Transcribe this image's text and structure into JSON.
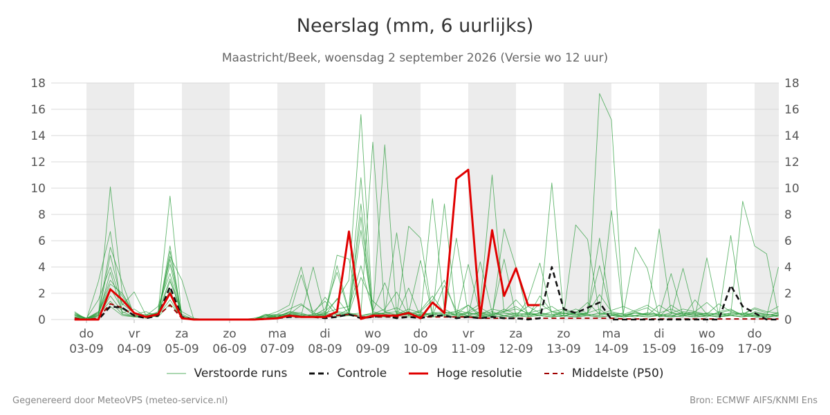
{
  "header": {
    "title": "Neerslag (mm, 6 uurlijks)",
    "subtitle": "Maastricht/Beek, woensdag  2 september 2026 (Versie wo 12 uur)"
  },
  "footer": {
    "left": "Gegenereerd door MeteoVPS (meteo-service.nl)",
    "right": "Bron: ECMWF AIFS/KNMI Ens"
  },
  "colors": {
    "ensemble": "#2e9e3e",
    "control": "#111111",
    "hires": "#e00000",
    "median": "#a00000",
    "weekend_band": "#ececec",
    "grid": "#d9d9d9"
  },
  "chart_data": {
    "type": "line",
    "xlabel": "",
    "ylabel": "",
    "x_unit": "days since 2026-09-02 12:00 (6-hourly steps)",
    "xlim": [
      0.0,
      15.0
    ],
    "ylim": [
      0,
      18
    ],
    "yticks": [
      0,
      2,
      4,
      6,
      8,
      10,
      12,
      14,
      16,
      18
    ],
    "axis_labels_right": true,
    "grid": true,
    "legend_position": "bottom",
    "x_ticks": [
      {
        "day": "do",
        "date": "03-09"
      },
      {
        "day": "vr",
        "date": "04-09"
      },
      {
        "day": "za",
        "date": "05-09"
      },
      {
        "day": "zo",
        "date": "06-09"
      },
      {
        "day": "ma",
        "date": "07-09"
      },
      {
        "day": "di",
        "date": "08-09"
      },
      {
        "day": "wo",
        "date": "09-09"
      },
      {
        "day": "do",
        "date": "10-09"
      },
      {
        "day": "vr",
        "date": "11-09"
      },
      {
        "day": "za",
        "date": "12-09"
      },
      {
        "day": "zo",
        "date": "13-09"
      },
      {
        "day": "ma",
        "date": "14-09"
      },
      {
        "day": "di",
        "date": "15-09"
      },
      {
        "day": "wo",
        "date": "16-09"
      },
      {
        "day": "do",
        "date": "17-09"
      }
    ],
    "shaded_days_start": [
      0,
      2,
      4,
      6,
      8,
      10,
      12,
      14
    ],
    "legend": [
      {
        "key": "ensemble",
        "label": "Verstoorde runs",
        "style": "thin-solid"
      },
      {
        "key": "control",
        "label": "Controle",
        "style": "dashed"
      },
      {
        "key": "hires",
        "label": "Hoge resolutie",
        "style": "thick-solid"
      },
      {
        "key": "median",
        "label": "Middelste (P50)",
        "style": "dashed"
      }
    ],
    "series": [
      {
        "name": "Hoge resolutie",
        "x": [
          -0.25,
          0.0,
          0.25,
          0.5,
          0.75,
          1.0,
          1.25,
          1.5,
          1.75,
          2.0,
          2.25,
          2.5,
          2.75,
          3.0,
          3.25,
          3.5,
          3.75,
          4.0,
          4.25,
          4.5,
          4.75,
          5.0,
          5.25,
          5.5,
          5.75,
          6.0,
          6.25,
          6.5,
          6.75,
          7.0,
          7.25,
          7.5,
          7.75,
          8.0,
          8.25,
          8.5,
          8.75,
          9.0,
          9.25,
          9.5
        ],
        "values": [
          0.0,
          0.0,
          0.0,
          2.3,
          1.5,
          0.5,
          0.2,
          0.4,
          2.0,
          0.1,
          0.0,
          0.0,
          0.0,
          0.0,
          0.0,
          0.0,
          0.05,
          0.1,
          0.3,
          0.2,
          0.2,
          0.2,
          0.6,
          6.7,
          0.05,
          0.3,
          0.3,
          0.3,
          0.5,
          0.1,
          1.3,
          0.5,
          10.7,
          11.4,
          0.2,
          6.8,
          1.8,
          3.9,
          1.1,
          1.1
        ]
      },
      {
        "name": "Controle",
        "x": [
          -0.25,
          0.0,
          0.25,
          0.5,
          0.75,
          1.0,
          1.25,
          1.5,
          1.75,
          2.0,
          2.25,
          2.5,
          2.75,
          3.0,
          3.25,
          3.5,
          3.75,
          4.0,
          4.25,
          4.5,
          4.75,
          5.0,
          5.25,
          5.5,
          5.75,
          6.0,
          6.25,
          6.5,
          6.75,
          7.0,
          7.25,
          7.5,
          7.75,
          8.0,
          8.25,
          8.5,
          8.75,
          9.0,
          9.25,
          9.5,
          9.75,
          10.0,
          10.25,
          10.5,
          10.75,
          11.0,
          11.25,
          11.5,
          11.75,
          12.0,
          12.25,
          12.5,
          12.75,
          13.0,
          13.25,
          13.5,
          13.75,
          14.0,
          14.25,
          14.5
        ],
        "values": [
          0.0,
          0.0,
          0.0,
          1.0,
          0.9,
          0.3,
          0.1,
          0.3,
          2.5,
          0.2,
          0.0,
          0.0,
          0.0,
          0.0,
          0.0,
          0.0,
          0.05,
          0.1,
          0.2,
          0.2,
          0.2,
          0.1,
          0.2,
          0.4,
          0.1,
          0.2,
          0.3,
          0.1,
          0.2,
          0.1,
          0.3,
          0.3,
          0.1,
          0.2,
          0.1,
          0.2,
          0.1,
          0.1,
          0.0,
          0.1,
          4.0,
          0.8,
          0.5,
          0.9,
          1.3,
          0.0,
          0.0,
          0.0,
          0.0,
          0.0,
          0.0,
          0.0,
          0.0,
          0.0,
          0.0,
          2.6,
          1.0,
          0.5,
          0.0,
          0.0
        ]
      },
      {
        "name": "Middelste (P50)",
        "x": [
          -0.25,
          0.0,
          0.25,
          0.5,
          0.75,
          1.0,
          1.25,
          1.5,
          1.75,
          2.0,
          2.25,
          2.5,
          2.75,
          3.0,
          3.25,
          3.5,
          3.75,
          4.0,
          4.25,
          4.5,
          4.75,
          5.0,
          5.25,
          5.5,
          5.75,
          6.0,
          6.25,
          6.5,
          6.75,
          7.0,
          7.25,
          7.5,
          7.75,
          8.0,
          8.25,
          8.5,
          8.75,
          9.0,
          9.25,
          9.5,
          9.75,
          10.0,
          10.25,
          10.5,
          10.75,
          11.0,
          11.25,
          11.5,
          11.75,
          12.0,
          12.25,
          12.5,
          12.75,
          13.0,
          13.25,
          13.5,
          13.75,
          14.0,
          14.25,
          14.5
        ],
        "values": [
          0.1,
          0.0,
          0.1,
          1.2,
          0.9,
          0.3,
          0.1,
          0.3,
          1.1,
          0.1,
          0.0,
          0.0,
          0.0,
          0.0,
          0.0,
          0.0,
          0.05,
          0.1,
          0.2,
          0.2,
          0.2,
          0.2,
          0.3,
          0.4,
          0.2,
          0.2,
          0.2,
          0.2,
          0.2,
          0.2,
          0.2,
          0.2,
          0.2,
          0.2,
          0.1,
          0.1,
          0.1,
          0.1,
          0.1,
          0.1,
          0.1,
          0.1,
          0.1,
          0.1,
          0.1,
          0.1,
          0.05,
          0.05,
          0.05,
          0.05,
          0.05,
          0.05,
          0.05,
          0.05,
          0.05,
          0.05,
          0.05,
          0.05,
          0.05,
          0.05
        ]
      }
    ],
    "ensemble": {
      "name": "Verstoorde runs",
      "x": [
        -0.25,
        0.0,
        0.25,
        0.5,
        0.75,
        1.0,
        1.25,
        1.5,
        1.75,
        2.0,
        2.25,
        2.5,
        2.75,
        3.0,
        3.25,
        3.5,
        3.75,
        4.0,
        4.25,
        4.5,
        4.75,
        5.0,
        5.25,
        5.5,
        5.75,
        6.0,
        6.25,
        6.5,
        6.75,
        7.0,
        7.25,
        7.5,
        7.75,
        8.0,
        8.25,
        8.5,
        8.75,
        9.0,
        9.25,
        9.5,
        9.75,
        10.0,
        10.25,
        10.5,
        10.75,
        11.0,
        11.25,
        11.5,
        11.75,
        12.0,
        12.25,
        12.5,
        12.75,
        13.0,
        13.25,
        13.5,
        13.75,
        14.0,
        14.25,
        14.5
      ],
      "members": [
        [
          0.5,
          0.1,
          0.3,
          10.1,
          2.0,
          0.5,
          0.2,
          0.5,
          9.4,
          0.1,
          0.0,
          0.0,
          0.0,
          0.0,
          0.0,
          0.1,
          0.3,
          0.4,
          0.8,
          1.2,
          0.4,
          0.6,
          1.5,
          3.0,
          15.6,
          0.4,
          0.8,
          2.1,
          0.3,
          0.6,
          1.5,
          3.0,
          0.4,
          1.1,
          0.2,
          0.3,
          0.8,
          0.4,
          1.0,
          0.5,
          10.4,
          0.3,
          0.2,
          0.5,
          0.8,
          0.1,
          0.3,
          0.6,
          0.9,
          0.2,
          1.1,
          0.5,
          0.3,
          0.2,
          0.6,
          0.8,
          0.3,
          0.2,
          0.1,
          0.4
        ],
        [
          0.3,
          0.0,
          2.9,
          6.7,
          0.4,
          0.2,
          0.1,
          0.3,
          5.6,
          0.2,
          0.0,
          0.0,
          0.0,
          0.0,
          0.0,
          0.0,
          0.2,
          0.1,
          0.4,
          0.3,
          4.0,
          0.3,
          1.6,
          0.4,
          0.5,
          13.5,
          0.6,
          0.3,
          2.4,
          0.2,
          9.2,
          0.8,
          0.3,
          0.6,
          1.2,
          11.0,
          0.5,
          0.3,
          0.2,
          1.8,
          0.6,
          0.3,
          7.2,
          6.1,
          0.4,
          0.5,
          0.2,
          0.3,
          0.5,
          0.4,
          0.3,
          0.2,
          1.5,
          0.4,
          0.3,
          6.4,
          0.5,
          0.3,
          0.4,
          0.2
        ],
        [
          0.2,
          0.0,
          0.4,
          5.5,
          2.8,
          0.3,
          0.2,
          0.6,
          4.8,
          3.0,
          0.0,
          0.0,
          0.0,
          0.0,
          0.0,
          0.0,
          0.4,
          0.2,
          0.6,
          0.5,
          0.2,
          0.4,
          4.9,
          4.6,
          0.3,
          0.5,
          13.3,
          0.4,
          0.3,
          0.6,
          0.3,
          8.8,
          0.2,
          0.5,
          0.3,
          0.4,
          0.6,
          0.8,
          0.5,
          0.3,
          0.2,
          0.7,
          0.4,
          0.5,
          17.2,
          15.2,
          0.3,
          0.5,
          0.4,
          0.3,
          0.2,
          0.6,
          0.5,
          0.3,
          0.2,
          0.4,
          9.0,
          5.6,
          5.0,
          0.3
        ],
        [
          0.4,
          0.1,
          1.5,
          4.0,
          1.1,
          2.1,
          0.3,
          1.0,
          3.5,
          0.2,
          0.0,
          0.0,
          0.0,
          0.0,
          0.0,
          0.0,
          0.3,
          0.6,
          1.1,
          4.0,
          0.2,
          0.5,
          0.8,
          1.0,
          10.8,
          0.6,
          0.4,
          0.3,
          7.1,
          6.2,
          0.4,
          0.3,
          6.2,
          0.4,
          0.5,
          0.3,
          6.9,
          4.0,
          0.2,
          0.5,
          0.3,
          0.2,
          0.6,
          0.4,
          0.3,
          8.3,
          0.3,
          0.2,
          0.4,
          6.9,
          0.5,
          0.3,
          0.2,
          4.7,
          0.3,
          0.5,
          0.4,
          0.2,
          0.3,
          0.5
        ],
        [
          0.6,
          0.0,
          0.3,
          3.6,
          0.5,
          0.8,
          0.2,
          0.4,
          2.9,
          0.6,
          0.1,
          0.0,
          0.0,
          0.0,
          0.0,
          0.0,
          0.2,
          0.3,
          0.5,
          0.3,
          0.4,
          1.7,
          0.6,
          0.5,
          8.8,
          0.4,
          0.5,
          6.6,
          0.3,
          0.4,
          0.5,
          0.6,
          0.3,
          4.2,
          0.4,
          0.6,
          0.3,
          0.5,
          0.4,
          0.3,
          0.6,
          0.5,
          0.3,
          0.4,
          6.2,
          0.3,
          0.5,
          5.5,
          3.9,
          0.2,
          0.4,
          3.9,
          0.3,
          0.5,
          0.4,
          0.3,
          0.2,
          0.6,
          0.4,
          0.3
        ],
        [
          0.3,
          0.1,
          0.6,
          3.0,
          1.8,
          0.4,
          0.6,
          0.2,
          5.2,
          0.1,
          0.0,
          0.0,
          0.0,
          0.0,
          0.0,
          0.0,
          0.3,
          0.4,
          0.3,
          3.4,
          0.5,
          0.3,
          4.1,
          0.6,
          7.8,
          0.3,
          0.5,
          0.4,
          0.6,
          0.3,
          0.4,
          0.5,
          0.6,
          0.3,
          4.4,
          0.5,
          0.3,
          0.2,
          1.5,
          4.3,
          0.4,
          0.5,
          0.3,
          0.5,
          4.1,
          0.4,
          0.2,
          0.5,
          0.3,
          0.4,
          3.5,
          0.3,
          0.5,
          0.4,
          0.3,
          0.5,
          0.4,
          0.3,
          0.2,
          4.0
        ],
        [
          0.2,
          0.0,
          0.5,
          2.4,
          0.8,
          0.3,
          0.4,
          0.5,
          3.1,
          0.3,
          0.0,
          0.0,
          0.0,
          0.0,
          0.0,
          0.0,
          0.4,
          0.3,
          0.5,
          0.4,
          0.3,
          0.5,
          0.4,
          0.3,
          6.8,
          0.5,
          0.4,
          0.3,
          0.5,
          4.5,
          0.3,
          0.4,
          0.5,
          0.3,
          0.6,
          0.4,
          4.6,
          0.3,
          0.5,
          0.4,
          0.3,
          0.5,
          0.4,
          0.3,
          0.5,
          0.4,
          0.3,
          0.5,
          0.4,
          0.3,
          0.5,
          0.4,
          0.3,
          0.5,
          0.4,
          0.3,
          0.5,
          0.4,
          0.3,
          0.5
        ],
        [
          0.4,
          0.0,
          0.2,
          1.8,
          0.6,
          0.2,
          0.3,
          0.4,
          2.2,
          0.2,
          0.0,
          0.0,
          0.0,
          0.0,
          0.0,
          0.0,
          0.2,
          0.2,
          0.3,
          0.2,
          0.3,
          0.4,
          0.3,
          0.5,
          0.3,
          0.4,
          0.2,
          0.3,
          0.4,
          0.3,
          0.2,
          0.3,
          0.4,
          0.2,
          0.3,
          0.2,
          0.3,
          0.2,
          0.4,
          0.3,
          0.2,
          0.3,
          0.2,
          0.3,
          0.2,
          0.3,
          0.2,
          0.3,
          0.2,
          0.3,
          0.2,
          0.3,
          0.2,
          0.3,
          0.2,
          0.3,
          0.2,
          0.3,
          0.2,
          0.3
        ],
        [
          0.3,
          0.1,
          0.4,
          1.4,
          0.4,
          0.3,
          0.2,
          0.3,
          1.5,
          0.1,
          0.0,
          0.0,
          0.0,
          0.0,
          0.0,
          0.0,
          0.1,
          0.2,
          0.4,
          0.3,
          0.2,
          0.3,
          0.5,
          0.4,
          0.3,
          0.4,
          0.5,
          0.6,
          0.4,
          0.3,
          0.5,
          0.4,
          0.3,
          0.5,
          0.4,
          0.3,
          0.5,
          0.4,
          0.3,
          0.5,
          0.4,
          0.3,
          0.5,
          0.4,
          0.3,
          0.5,
          0.4,
          0.3,
          0.5,
          0.4,
          0.3,
          0.5,
          0.4,
          0.3,
          0.5,
          0.4,
          0.3,
          0.5,
          0.4,
          0.3
        ],
        [
          0.5,
          0.0,
          0.6,
          1.0,
          0.3,
          0.2,
          0.3,
          0.2,
          1.2,
          0.2,
          0.0,
          0.0,
          0.0,
          0.0,
          0.0,
          0.0,
          0.2,
          0.3,
          0.2,
          0.3,
          0.2,
          0.3,
          0.2,
          0.3,
          0.2,
          0.3,
          0.2,
          0.3,
          0.2,
          0.3,
          0.2,
          0.3,
          0.2,
          0.3,
          0.2,
          0.3,
          0.2,
          0.3,
          0.2,
          0.3,
          0.2,
          0.3,
          0.2,
          0.3,
          0.2,
          0.3,
          0.2,
          0.3,
          0.2,
          0.3,
          0.2,
          0.3,
          0.2,
          0.3,
          0.2,
          0.3,
          0.2,
          0.3,
          0.2,
          0.3
        ],
        [
          0.2,
          0.0,
          0.3,
          4.9,
          1.2,
          0.5,
          0.2,
          0.4,
          4.2,
          0.2,
          0.0,
          0.0,
          0.0,
          0.0,
          0.0,
          0.0,
          0.1,
          0.3,
          0.4,
          1.1,
          0.6,
          1.4,
          0.3,
          0.8,
          4.1,
          0.6,
          2.8,
          0.4,
          0.8,
          0.5,
          0.3,
          2.6,
          0.7,
          0.5,
          0.9,
          0.4,
          0.6,
          1.0,
          0.4,
          1.2,
          0.6,
          0.8,
          0.5,
          1.3,
          0.4,
          0.7,
          1.0,
          0.6,
          0.3,
          1.1,
          0.5,
          0.8,
          0.6,
          0.4,
          1.2,
          0.6,
          0.4,
          0.8,
          0.5,
          1.0
        ],
        [
          0.4,
          0.1,
          0.5,
          2.7,
          2.0,
          0.4,
          0.3,
          0.5,
          4.6,
          0.4,
          0.0,
          0.0,
          0.0,
          0.0,
          0.0,
          0.0,
          0.3,
          0.2,
          0.6,
          0.4,
          0.3,
          0.8,
          3.6,
          0.5,
          3.2,
          1.4,
          0.6,
          0.9,
          0.4,
          0.7,
          1.8,
          0.5,
          0.6,
          1.1,
          0.4,
          0.8,
          0.6,
          1.5,
          0.5,
          0.7,
          1.0,
          0.4,
          0.8,
          0.5,
          1.9,
          0.6,
          0.4,
          0.7,
          1.1,
          0.5,
          0.8,
          0.4,
          0.6,
          1.3,
          0.5,
          0.7,
          0.4,
          0.9,
          0.6,
          0.5
        ]
      ]
    }
  }
}
